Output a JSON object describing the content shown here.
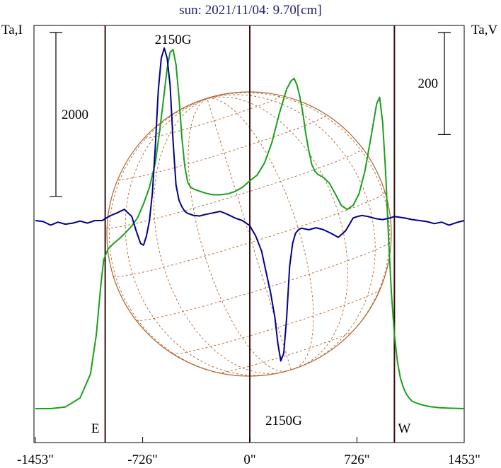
{
  "chart_data": {
    "type": "line",
    "title": "sun: 2021/11/04: 9.70[cm]",
    "left_axis_label": "Ta,I",
    "right_axis_label": "Ta,V",
    "x_ticks": [
      {
        "value": -1453,
        "label": "-1453\""
      },
      {
        "value": -726,
        "label": "-726\""
      },
      {
        "value": 0,
        "label": "0\""
      },
      {
        "value": 726,
        "label": "726\""
      },
      {
        "value": 1453,
        "label": "1453\""
      }
    ],
    "xlim": [
      -1453,
      1453
    ],
    "limb_markers": [
      {
        "value": -980,
        "label": "E"
      },
      {
        "value": 0,
        "label": ""
      },
      {
        "value": 980,
        "label": "W"
      }
    ],
    "scale_bars": [
      {
        "axis": "left",
        "label": "2000",
        "value": 2000
      },
      {
        "axis": "right",
        "label": "200",
        "value": 200
      }
    ],
    "annotations": [
      {
        "text": "2150G",
        "x": -520,
        "position": "above-peak"
      },
      {
        "text": "2150G",
        "x": 230,
        "position": "below-dip"
      }
    ],
    "series": [
      {
        "label": "I (green)",
        "color": "#1aa01a",
        "x": [
          -1453,
          -1350,
          -1250,
          -1150,
          -1080,
          -1040,
          -1010,
          -990,
          -960,
          -920,
          -880,
          -840,
          -800,
          -760,
          -720,
          -680,
          -640,
          -610,
          -580,
          -560,
          -540,
          -520,
          -500,
          -480,
          -460,
          -440,
          -420,
          -400,
          -380,
          -350,
          -300,
          -250,
          -200,
          -150,
          -100,
          -50,
          0,
          50,
          100,
          150,
          200,
          250,
          280,
          300,
          320,
          340,
          360,
          380,
          400,
          420,
          440,
          460,
          500,
          540,
          580,
          620,
          660,
          700,
          740,
          780,
          820,
          860,
          880,
          900,
          920,
          940,
          960,
          980,
          1000,
          1020,
          1040,
          1060,
          1080,
          1100,
          1140,
          1180,
          1220,
          1280,
          1350,
          1453
        ],
        "y": [
          0,
          0,
          20,
          130,
          420,
          900,
          1500,
          1820,
          1950,
          2020,
          2080,
          2150,
          2230,
          2330,
          2500,
          2700,
          3000,
          3400,
          3850,
          4150,
          4350,
          4380,
          4200,
          3800,
          3300,
          2950,
          2760,
          2700,
          2680,
          2660,
          2630,
          2610,
          2610,
          2620,
          2650,
          2700,
          2780,
          2850,
          3000,
          3250,
          3600,
          3900,
          4000,
          4030,
          3950,
          3800,
          3600,
          3350,
          3150,
          2980,
          2900,
          2860,
          2820,
          2750,
          2620,
          2480,
          2430,
          2480,
          2620,
          2900,
          3300,
          3720,
          3800,
          3500,
          2900,
          2100,
          1400,
          900,
          580,
          380,
          260,
          180,
          130,
          90,
          60,
          40,
          25,
          12,
          5,
          0
        ]
      },
      {
        "label": "V (blue)",
        "color": "#00008b",
        "x": [
          -1453,
          -1400,
          -1350,
          -1300,
          -1250,
          -1200,
          -1150,
          -1100,
          -1050,
          -1000,
          -950,
          -900,
          -850,
          -800,
          -770,
          -740,
          -720,
          -700,
          -680,
          -660,
          -640,
          -620,
          -600,
          -580,
          -560,
          -540,
          -520,
          -500,
          -480,
          -460,
          -440,
          -420,
          -400,
          -380,
          -340,
          -300,
          -250,
          -200,
          -150,
          -100,
          -50,
          0,
          40,
          80,
          110,
          140,
          170,
          190,
          210,
          230,
          250,
          270,
          290,
          310,
          330,
          350,
          400,
          450,
          500,
          550,
          600,
          650,
          680,
          700,
          730,
          760,
          800,
          850,
          900,
          950,
          980,
          1050,
          1100,
          1150,
          1200,
          1250,
          1300,
          1350,
          1400,
          1453
        ],
        "y": [
          0,
          -2,
          -9,
          -3,
          -7,
          -5,
          -1,
          -5,
          0,
          0,
          9,
          15,
          22,
          8,
          -20,
          -45,
          -48,
          -30,
          0,
          55,
          145,
          255,
          318,
          338,
          318,
          265,
          155,
          70,
          40,
          27,
          18,
          14,
          12,
          10,
          9,
          12,
          15,
          18,
          12,
          5,
          0,
          -10,
          -30,
          -60,
          -100,
          -140,
          -190,
          -240,
          -275,
          -260,
          -190,
          -90,
          -45,
          -25,
          -18,
          -15,
          -18,
          -14,
          -18,
          -25,
          -33,
          -20,
          -5,
          5,
          8,
          10,
          8,
          4,
          2,
          5,
          8,
          5,
          2,
          0,
          -2,
          -6,
          -3,
          -9,
          -4,
          0
        ]
      }
    ],
    "left_ylim": [
      0,
      4400
    ],
    "right_ylim": [
      -292,
      338
    ],
    "grid": false,
    "legend": "none"
  }
}
